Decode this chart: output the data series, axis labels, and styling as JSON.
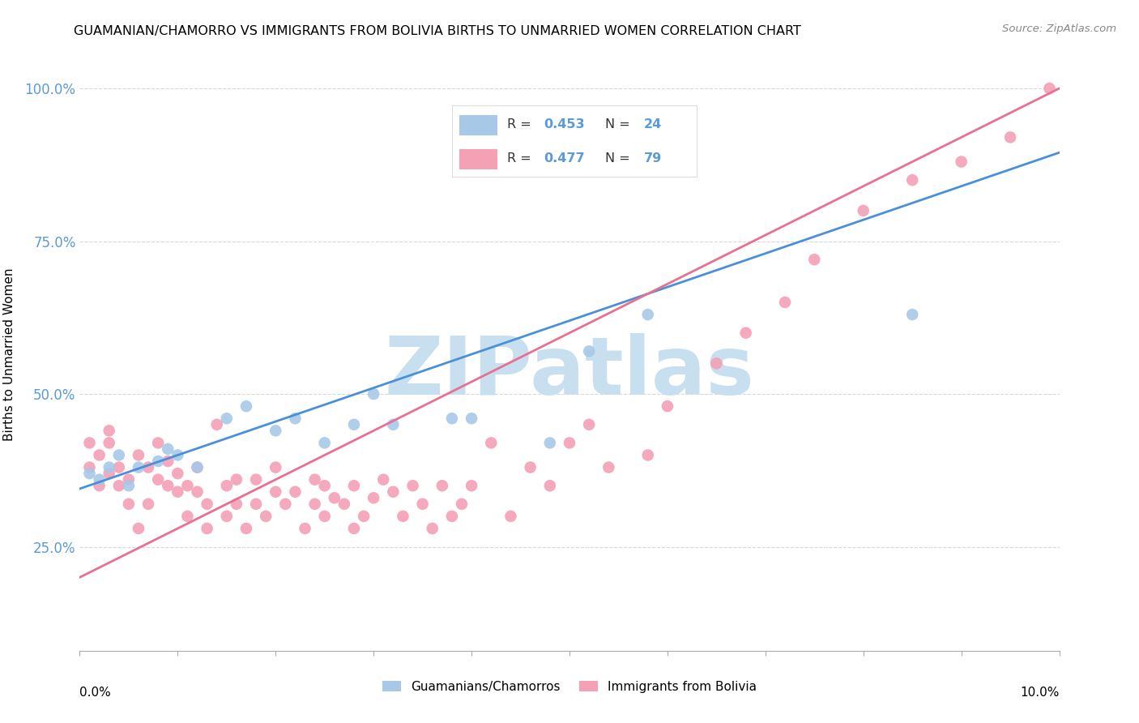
{
  "title": "GUAMANIAN/CHAMORRO VS IMMIGRANTS FROM BOLIVIA BIRTHS TO UNMARRIED WOMEN CORRELATION CHART",
  "source": "Source: ZipAtlas.com",
  "ylabel": "Births to Unmarried Women",
  "legend_label1": "Guamanians/Chamorros",
  "legend_label2": "Immigrants from Bolivia",
  "r1": 0.453,
  "n1": 24,
  "r2": 0.477,
  "n2": 79,
  "color_blue": "#a8c8e8",
  "color_pink": "#f4a0b5",
  "color_line_blue": "#4a90d9",
  "color_line_pink": "#e87090",
  "color_ytick": "#5b9bd5",
  "blue_intercept": 0.345,
  "blue_slope": 5.5,
  "pink_intercept": 0.2,
  "pink_slope": 8.0,
  "xlim": [
    0.0,
    0.1
  ],
  "ylim": [
    0.08,
    1.05
  ],
  "yticks": [
    0.25,
    0.5,
    0.75,
    1.0
  ],
  "ytick_labels": [
    "25.0%",
    "50.0%",
    "75.0%",
    "100.0%"
  ],
  "background_color": "#ffffff",
  "watermark_text": "ZIPatlas",
  "watermark_color": "#c8dff0",
  "grid_color": "#d8d8d8",
  "blue_points_x": [
    0.001,
    0.002,
    0.003,
    0.004,
    0.005,
    0.006,
    0.008,
    0.009,
    0.01,
    0.012,
    0.015,
    0.017,
    0.02,
    0.022,
    0.025,
    0.028,
    0.03,
    0.032,
    0.038,
    0.04,
    0.048,
    0.052,
    0.058,
    0.085
  ],
  "blue_points_y": [
    0.37,
    0.36,
    0.38,
    0.4,
    0.35,
    0.38,
    0.39,
    0.41,
    0.4,
    0.38,
    0.46,
    0.48,
    0.44,
    0.46,
    0.42,
    0.45,
    0.5,
    0.45,
    0.46,
    0.46,
    0.42,
    0.57,
    0.63,
    0.63
  ],
  "pink_points_x": [
    0.001,
    0.001,
    0.002,
    0.002,
    0.003,
    0.003,
    0.003,
    0.004,
    0.004,
    0.005,
    0.005,
    0.006,
    0.006,
    0.007,
    0.007,
    0.008,
    0.008,
    0.009,
    0.009,
    0.01,
    0.01,
    0.011,
    0.011,
    0.012,
    0.012,
    0.013,
    0.013,
    0.014,
    0.015,
    0.015,
    0.016,
    0.016,
    0.017,
    0.018,
    0.018,
    0.019,
    0.02,
    0.02,
    0.021,
    0.022,
    0.023,
    0.024,
    0.024,
    0.025,
    0.025,
    0.026,
    0.027,
    0.028,
    0.028,
    0.029,
    0.03,
    0.031,
    0.032,
    0.033,
    0.034,
    0.035,
    0.036,
    0.037,
    0.038,
    0.039,
    0.04,
    0.042,
    0.044,
    0.046,
    0.048,
    0.05,
    0.052,
    0.054,
    0.058,
    0.06,
    0.065,
    0.068,
    0.072,
    0.075,
    0.08,
    0.085,
    0.09,
    0.095,
    0.099
  ],
  "pink_points_y": [
    0.38,
    0.42,
    0.35,
    0.4,
    0.37,
    0.42,
    0.44,
    0.35,
    0.38,
    0.32,
    0.36,
    0.4,
    0.28,
    0.38,
    0.32,
    0.36,
    0.42,
    0.35,
    0.39,
    0.34,
    0.37,
    0.3,
    0.35,
    0.34,
    0.38,
    0.28,
    0.32,
    0.45,
    0.3,
    0.35,
    0.32,
    0.36,
    0.28,
    0.32,
    0.36,
    0.3,
    0.34,
    0.38,
    0.32,
    0.34,
    0.28,
    0.32,
    0.36,
    0.3,
    0.35,
    0.33,
    0.32,
    0.35,
    0.28,
    0.3,
    0.33,
    0.36,
    0.34,
    0.3,
    0.35,
    0.32,
    0.28,
    0.35,
    0.3,
    0.32,
    0.35,
    0.42,
    0.3,
    0.38,
    0.35,
    0.42,
    0.45,
    0.38,
    0.4,
    0.48,
    0.55,
    0.6,
    0.65,
    0.72,
    0.8,
    0.85,
    0.88,
    0.92,
    1.0
  ]
}
